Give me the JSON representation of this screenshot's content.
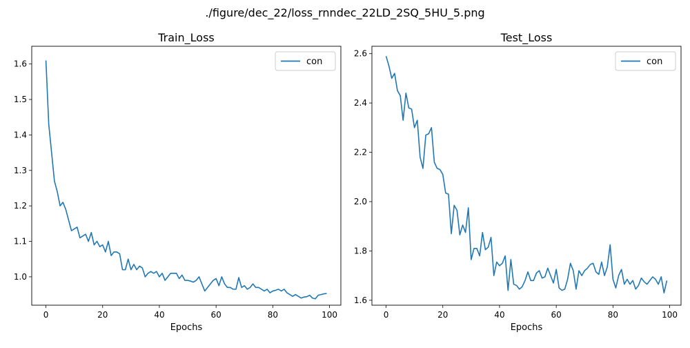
{
  "figure_title": "./figure/dec_22/loss_rnndec_22LD_2SQ_5HU_5.png",
  "chart_data": [
    {
      "type": "line",
      "title": "Train_Loss",
      "xlabel": "Epochs",
      "ylabel": "",
      "xlim": [
        -5,
        104
      ],
      "ylim": [
        0.92,
        1.65
      ],
      "xticks": [
        0,
        20,
        40,
        60,
        80,
        100
      ],
      "yticks": [
        1.0,
        1.1,
        1.2,
        1.3,
        1.4,
        1.5,
        1.6
      ],
      "xtick_labels": [
        "0",
        "20",
        "40",
        "60",
        "80",
        "100"
      ],
      "ytick_labels": [
        "1.0",
        "1.1",
        "1.2",
        "1.3",
        "1.4",
        "1.5",
        "1.6"
      ],
      "legend_position": "top-right",
      "grid": false,
      "series": [
        {
          "name": "con",
          "color": "#1f77b4",
          "x": [
            0,
            1,
            2,
            3,
            4,
            5,
            6,
            7,
            8,
            9,
            10,
            11,
            12,
            13,
            14,
            15,
            16,
            17,
            18,
            19,
            20,
            21,
            22,
            23,
            24,
            25,
            26,
            27,
            28,
            29,
            30,
            31,
            32,
            33,
            34,
            35,
            36,
            37,
            38,
            39,
            40,
            41,
            42,
            43,
            44,
            45,
            46,
            47,
            48,
            49,
            50,
            51,
            52,
            53,
            54,
            55,
            56,
            57,
            58,
            59,
            60,
            61,
            62,
            63,
            64,
            65,
            66,
            67,
            68,
            69,
            70,
            71,
            72,
            73,
            74,
            75,
            76,
            77,
            78,
            79,
            80,
            81,
            82,
            83,
            84,
            85,
            86,
            87,
            88,
            89,
            90,
            91,
            92,
            93,
            94,
            95,
            96,
            97,
            98,
            99
          ],
          "values": [
            1.61,
            1.43,
            1.35,
            1.27,
            1.24,
            1.2,
            1.21,
            1.19,
            1.16,
            1.13,
            1.135,
            1.14,
            1.11,
            1.115,
            1.12,
            1.1,
            1.125,
            1.09,
            1.1,
            1.085,
            1.09,
            1.07,
            1.1,
            1.06,
            1.07,
            1.07,
            1.065,
            1.02,
            1.02,
            1.05,
            1.02,
            1.035,
            1.02,
            1.03,
            1.025,
            1.0,
            1.01,
            1.015,
            1.01,
            1.015,
            1.0,
            1.01,
            0.99,
            1.0,
            1.01,
            1.01,
            1.01,
            0.995,
            1.005,
            0.99,
            0.99,
            0.988,
            0.985,
            0.99,
            1.0,
            0.98,
            0.96,
            0.97,
            0.98,
            0.99,
            0.995,
            0.975,
            1.0,
            0.98,
            0.97,
            0.97,
            0.965,
            0.965,
            0.998,
            0.97,
            0.975,
            0.965,
            0.97,
            0.98,
            0.97,
            0.97,
            0.965,
            0.96,
            0.965,
            0.955,
            0.96,
            0.962,
            0.965,
            0.96,
            0.965,
            0.955,
            0.95,
            0.945,
            0.95,
            0.945,
            0.94,
            0.943,
            0.944,
            0.948,
            0.94,
            0.938,
            0.948,
            0.95,
            0.952,
            0.953
          ]
        }
      ]
    },
    {
      "type": "line",
      "title": "Test_Loss",
      "xlabel": "Epochs",
      "ylabel": "",
      "xlim": [
        -5,
        104
      ],
      "ylim": [
        1.58,
        2.63
      ],
      "xticks": [
        0,
        20,
        40,
        60,
        80,
        100
      ],
      "yticks": [
        1.6,
        1.8,
        2.0,
        2.2,
        2.4,
        2.6
      ],
      "xtick_labels": [
        "0",
        "20",
        "40",
        "60",
        "80",
        "100"
      ],
      "ytick_labels": [
        "1.6",
        "1.8",
        "2.0",
        "2.2",
        "2.4",
        "2.6"
      ],
      "legend_position": "top-right",
      "grid": false,
      "series": [
        {
          "name": "con",
          "color": "#1f77b4",
          "x": [
            0,
            1,
            2,
            3,
            4,
            5,
            6,
            7,
            8,
            9,
            10,
            11,
            12,
            13,
            14,
            15,
            16,
            17,
            18,
            19,
            20,
            21,
            22,
            23,
            24,
            25,
            26,
            27,
            28,
            29,
            30,
            31,
            32,
            33,
            34,
            35,
            36,
            37,
            38,
            39,
            40,
            41,
            42,
            43,
            44,
            45,
            46,
            47,
            48,
            49,
            50,
            51,
            52,
            53,
            54,
            55,
            56,
            57,
            58,
            59,
            60,
            61,
            62,
            63,
            64,
            65,
            66,
            67,
            68,
            69,
            70,
            71,
            72,
            73,
            74,
            75,
            76,
            77,
            78,
            79,
            80,
            81,
            82,
            83,
            84,
            85,
            86,
            87,
            88,
            89,
            90,
            91,
            92,
            93,
            94,
            95,
            96,
            97,
            98,
            99
          ],
          "values": [
            2.59,
            2.55,
            2.5,
            2.52,
            2.45,
            2.43,
            2.33,
            2.44,
            2.38,
            2.375,
            2.3,
            2.33,
            2.18,
            2.135,
            2.27,
            2.275,
            2.3,
            2.16,
            2.135,
            2.13,
            2.11,
            2.035,
            2.03,
            1.87,
            1.985,
            1.965,
            1.865,
            1.905,
            1.875,
            1.975,
            1.765,
            1.81,
            1.81,
            1.78,
            1.875,
            1.805,
            1.815,
            1.855,
            1.7,
            1.755,
            1.74,
            1.75,
            1.78,
            1.64,
            1.765,
            1.665,
            1.66,
            1.645,
            1.655,
            1.68,
            1.715,
            1.68,
            1.68,
            1.71,
            1.72,
            1.69,
            1.695,
            1.73,
            1.7,
            1.67,
            1.725,
            1.65,
            1.64,
            1.645,
            1.685,
            1.75,
            1.72,
            1.645,
            1.72,
            1.7,
            1.72,
            1.73,
            1.745,
            1.75,
            1.715,
            1.705,
            1.755,
            1.7,
            1.735,
            1.825,
            1.685,
            1.65,
            1.7,
            1.725,
            1.665,
            1.685,
            1.665,
            1.68,
            1.645,
            1.66,
            1.69,
            1.675,
            1.665,
            1.68,
            1.695,
            1.685,
            1.665,
            1.695,
            1.63,
            1.68
          ]
        }
      ]
    }
  ]
}
